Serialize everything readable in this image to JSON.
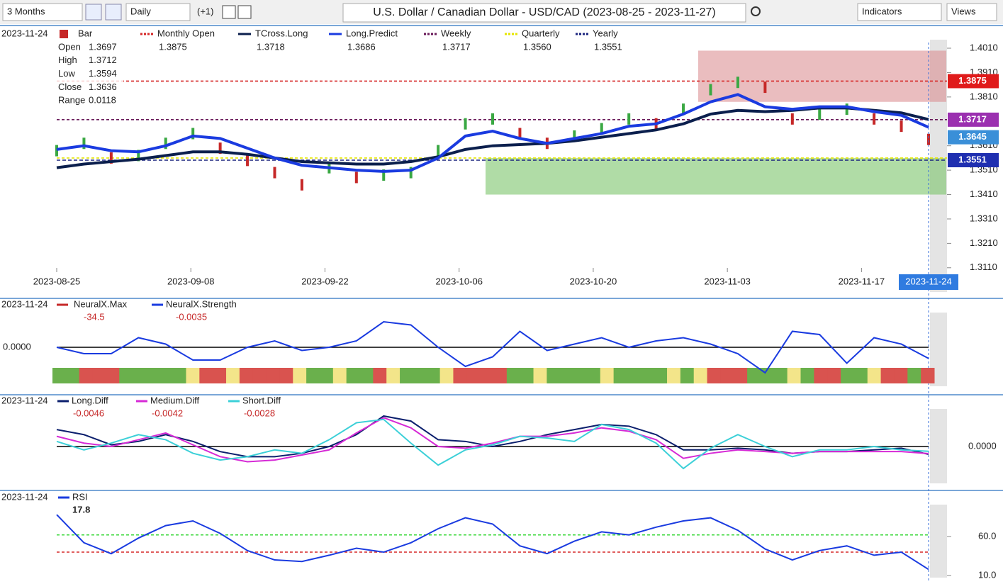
{
  "toolbar": {
    "range": "3 Months",
    "interval": "Daily",
    "offset": "(+1)",
    "symbol_title": "U.S. Dollar / Canadian Dollar - USD/CAD (2023-08-25 - 2023-11-27)",
    "indicators": "Indicators",
    "views": "Views"
  },
  "price_panel": {
    "date": "2023-11-24",
    "bar_label": "Bar",
    "legend": [
      {
        "name": "Monthly Open",
        "value": "1.3875",
        "color": "#d62828"
      },
      {
        "name": "TCross.Long",
        "value": "1.3718",
        "color": "#0b1f4d"
      },
      {
        "name": "Long.Predict",
        "value": "1.3686",
        "color": "#1a3be0"
      },
      {
        "name": "Weekly",
        "value": "1.3717",
        "color": "#6a1b5a"
      },
      {
        "name": "Quarterly",
        "value": "1.3560",
        "color": "#e6e600"
      },
      {
        "name": "Yearly",
        "value": "1.3551",
        "color": "#1a237e"
      }
    ],
    "ohlc": [
      {
        "label": "Open",
        "value": "1.3697"
      },
      {
        "label": "High",
        "value": "1.3712"
      },
      {
        "label": "Low",
        "value": "1.3594"
      },
      {
        "label": "Close",
        "value": "1.3636"
      },
      {
        "label": "Range",
        "value": "0.0118"
      }
    ],
    "x_labels": [
      "2023-08-25",
      "2023-09-08",
      "2023-09-22",
      "2023-10-06",
      "2023-10-20",
      "2023-11-03",
      "2023-11-17"
    ],
    "current_date": "2023-11-24",
    "ylim": [
      1.306,
      1.4103
    ],
    "yticks": [
      {
        "value": 1.401,
        "label": "1.4010"
      },
      {
        "value": 1.391,
        "label": "1.3910"
      },
      {
        "value": 1.381,
        "label": "1.3810"
      },
      {
        "value": 1.361,
        "label": "1.3610"
      },
      {
        "value": 1.351,
        "label": "1.3510"
      },
      {
        "value": 1.341,
        "label": "1.3410"
      },
      {
        "value": 1.331,
        "label": "1.3310"
      },
      {
        "value": 1.321,
        "label": "1.3210"
      },
      {
        "value": 1.311,
        "label": "1.3110"
      }
    ],
    "close": [
      1.359,
      1.362,
      1.356,
      1.357,
      1.362,
      1.366,
      1.36,
      1.355,
      1.35,
      1.345,
      1.352,
      1.348,
      1.349,
      1.35,
      1.359,
      1.37,
      1.372,
      1.366,
      1.362,
      1.365,
      1.368,
      1.372,
      1.37,
      1.376,
      1.384,
      1.387,
      1.385,
      1.372,
      1.374,
      1.376,
      1.372,
      1.369,
      1.3636
    ],
    "long_predict": [
      1.3595,
      1.361,
      1.359,
      1.3585,
      1.361,
      1.365,
      1.364,
      1.36,
      1.356,
      1.353,
      1.352,
      1.351,
      1.3505,
      1.351,
      1.356,
      1.365,
      1.367,
      1.364,
      1.362,
      1.364,
      1.366,
      1.369,
      1.37,
      1.374,
      1.379,
      1.382,
      1.377,
      1.376,
      1.377,
      1.377,
      1.375,
      1.3735,
      1.3686
    ],
    "tcross_long": [
      1.352,
      1.3535,
      1.3545,
      1.3555,
      1.357,
      1.3585,
      1.3585,
      1.3575,
      1.356,
      1.3545,
      1.354,
      1.3535,
      1.3535,
      1.3545,
      1.3565,
      1.3595,
      1.361,
      1.3615,
      1.362,
      1.363,
      1.3645,
      1.366,
      1.3675,
      1.37,
      1.374,
      1.3755,
      1.375,
      1.3755,
      1.3765,
      1.3765,
      1.3755,
      1.3745,
      1.3718
    ],
    "price_tags": [
      {
        "value": 1.3875,
        "label": "1.3875",
        "color": "#e01b1b"
      },
      {
        "value": 1.3717,
        "label": "1.3717",
        "color": "#9b30b0"
      },
      {
        "value": 1.3645,
        "label": "1.3645",
        "color": "#3a8fd8"
      },
      {
        "value": 1.3551,
        "label": "1.3551",
        "color": "#1f2fb0"
      }
    ]
  },
  "neural_panel": {
    "date": "2023-11-24",
    "legend": [
      {
        "name": "NeuralX.Max",
        "value": "-34.5",
        "color": "#c62828"
      },
      {
        "name": "NeuralX.Strength",
        "value": "-0.0035",
        "color": "#1a3be0"
      }
    ],
    "zero_label": "0.0000",
    "ylim": [
      -0.01,
      0.01
    ],
    "strength": [
      0.0,
      -0.002,
      -0.002,
      0.003,
      0.001,
      -0.004,
      -0.004,
      0.0,
      0.002,
      -0.001,
      0.0,
      0.002,
      0.008,
      0.007,
      0.0,
      -0.006,
      -0.003,
      0.005,
      -0.001,
      0.001,
      0.003,
      0.0,
      0.002,
      0.003,
      0.001,
      -0.002,
      -0.008,
      0.005,
      0.004,
      -0.005,
      0.003,
      0.001,
      -0.0035
    ],
    "strip": "GGRRRGGGGGYRRYRRRRYGGYGGRYGGGYRRRRGGYGGGGYGGGGYGYRRRGGGYGRRGGYRRGR",
    "strip_colors": {
      "G": "#6ab04c",
      "R": "#d9534f",
      "Y": "#f3e58a"
    }
  },
  "diff_panel": {
    "date": "2023-11-24",
    "zero_label": "0.0000",
    "ylim": [
      -0.023,
      0.023
    ],
    "series": [
      {
        "name": "Long.Diff",
        "value": "-0.0046",
        "color": "#0b1f6d",
        "values": [
          0.01,
          0.007,
          0.001,
          0.003,
          0.007,
          0.003,
          -0.003,
          -0.006,
          -0.006,
          -0.004,
          0.0,
          0.007,
          0.018,
          0.015,
          0.004,
          0.003,
          0.0,
          0.003,
          0.007,
          0.01,
          0.013,
          0.012,
          0.007,
          -0.002,
          -0.002,
          -0.001,
          -0.002,
          -0.004,
          -0.003,
          -0.003,
          -0.002,
          -0.001,
          -0.0046
        ]
      },
      {
        "name": "Medium.Diff",
        "value": "-0.0042",
        "color": "#d62ad6",
        "values": [
          0.006,
          0.002,
          0.0,
          0.004,
          0.008,
          0.001,
          -0.006,
          -0.009,
          -0.008,
          -0.005,
          -0.002,
          0.008,
          0.017,
          0.011,
          0.0,
          -0.001,
          0.002,
          0.006,
          0.006,
          0.008,
          0.011,
          0.009,
          0.004,
          -0.007,
          -0.004,
          -0.002,
          -0.003,
          -0.004,
          -0.003,
          -0.003,
          -0.003,
          -0.003,
          -0.0042
        ]
      },
      {
        "name": "Short.Diff",
        "value": "-0.0028",
        "color": "#3cd0d8",
        "values": [
          0.003,
          -0.002,
          0.002,
          0.007,
          0.004,
          -0.004,
          -0.008,
          -0.006,
          -0.002,
          -0.004,
          0.004,
          0.014,
          0.016,
          0.002,
          -0.011,
          -0.002,
          0.001,
          0.006,
          0.005,
          0.003,
          0.013,
          0.01,
          0.002,
          -0.013,
          -0.001,
          0.007,
          0.0,
          -0.006,
          -0.002,
          -0.002,
          0.0,
          -0.002,
          -0.0028
        ]
      }
    ]
  },
  "rsi_panel": {
    "date": "2023-11-24",
    "name": "RSI",
    "value": "17.8",
    "color": "#1a3be0",
    "ylim": [
      7.3,
      102.7
    ],
    "yticks": [
      {
        "value": 60,
        "label": "60.0"
      },
      {
        "value": 10,
        "label": "10.0"
      }
    ],
    "upper": 62,
    "lower": 40,
    "values": [
      88,
      52,
      38,
      58,
      74,
      80,
      64,
      42,
      30,
      28,
      36,
      45,
      40,
      52,
      70,
      84,
      76,
      48,
      38,
      54,
      66,
      62,
      72,
      80,
      84,
      68,
      44,
      30,
      42,
      48,
      36,
      40,
      17.8
    ]
  }
}
